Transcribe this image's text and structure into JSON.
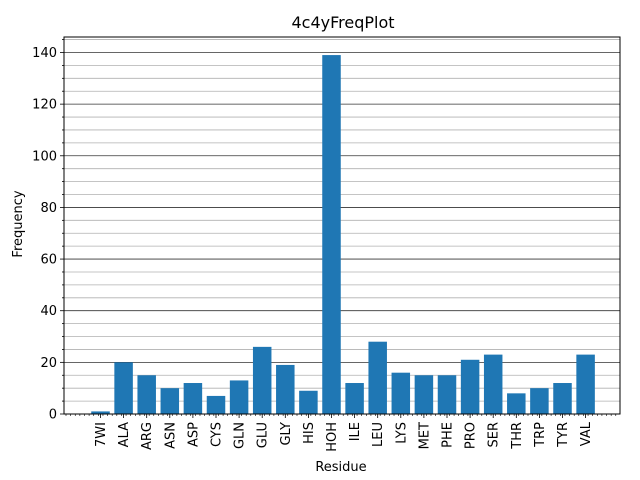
{
  "chart_data": {
    "type": "bar",
    "title": "4c4yFreqPlot",
    "xlabel": "Residue",
    "ylabel": "Frequency",
    "categories": [
      "7WI",
      "ALA",
      "ARG",
      "ASN",
      "ASP",
      "CYS",
      "GLN",
      "GLU",
      "GLY",
      "HIS",
      "HOH",
      "ILE",
      "LEU",
      "LYS",
      "MET",
      "PHE",
      "PRO",
      "SER",
      "THR",
      "TRP",
      "TYR",
      "VAL"
    ],
    "values": [
      1,
      20,
      15,
      10,
      12,
      7,
      13,
      26,
      19,
      9,
      139,
      12,
      28,
      16,
      15,
      15,
      21,
      23,
      8,
      10,
      12,
      23
    ],
    "ylim": [
      0,
      146
    ],
    "yticks": [
      0,
      20,
      40,
      60,
      80,
      100,
      120,
      140
    ],
    "grid": "major-and-minor-y",
    "bar_color": "#1f77b4"
  }
}
